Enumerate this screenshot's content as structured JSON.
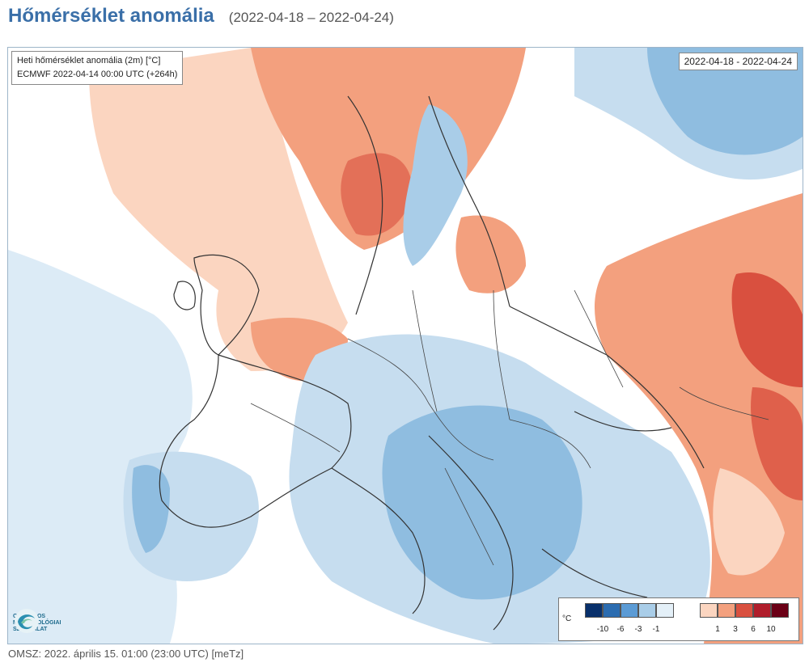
{
  "header": {
    "title": "Hőmérséklet anomália",
    "daterange": "(2022-04-18 – 2022-04-24)"
  },
  "map": {
    "info_line1": "Heti hőmérséklet anomália (2m) [°C]",
    "info_line2": "ECMWF 2022-04-14 00:00 UTC (+264h)",
    "date_box": "2022-04-18 - 2022-04-24",
    "logo_lines": [
      "ORSZÁGOS",
      "METEOROLÓGIAI",
      "SZOLGÁLAT"
    ],
    "legend": {
      "unit": "°C",
      "cold_ticks": [
        "-10",
        "-6",
        "-3",
        "-1"
      ],
      "warm_ticks": [
        "1",
        "3",
        "6",
        "10"
      ],
      "cold_colors": [
        "#08306b",
        "#2b6cb0",
        "#5b9bd5",
        "#a9cde8",
        "#e4f0f8"
      ],
      "warm_colors": [
        "#fbd5c0",
        "#f3a07e",
        "#d9503f",
        "#b01d2b",
        "#6b0016"
      ]
    }
  },
  "footer": {
    "text": "OMSZ: 2022. április 15. 01:00 (23:00  UTC)  [meTz]"
  }
}
